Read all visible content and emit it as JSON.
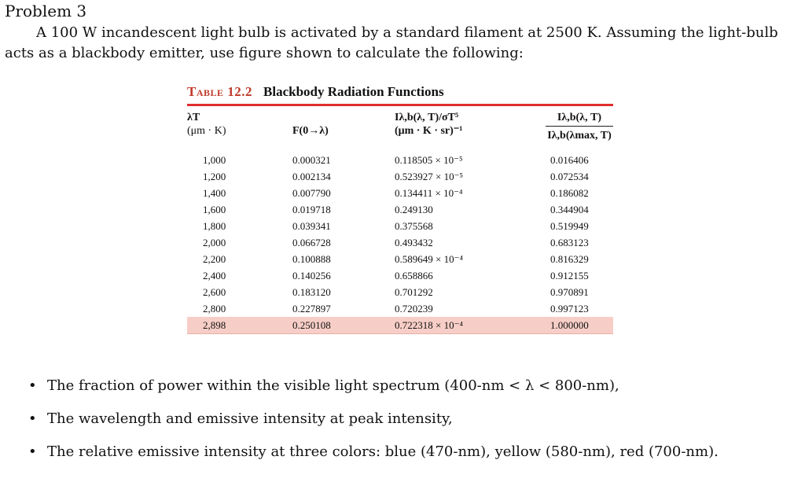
{
  "problem": {
    "heading": "Problem 3",
    "statement": "A 100 W incandescent light bulb is activated by a standard filament at 2500 K. Assuming the light-bulb acts as a blackbody emitter, use figure shown to calculate the following:"
  },
  "table": {
    "number": "Table 12.2",
    "title": "Blackbody Radiation Functions",
    "headers": {
      "col1_line1": "λT",
      "col1_line2": "(μm · K)",
      "col2": "F(0→λ)",
      "col3_line1": "Iλ,b(λ, T)/σT⁵",
      "col3_line2": "(μm · K · sr)⁻¹",
      "col4_num": "Iλ,b(λ, T)",
      "col4_den": "Iλ,b(λmax, T)"
    },
    "rows": [
      [
        "1,000",
        "0.000321",
        "0.118505 × 10⁻⁵",
        "0.016406"
      ],
      [
        "1,200",
        "0.002134",
        "0.523927 × 10⁻⁵",
        "0.072534"
      ],
      [
        "1,400",
        "0.007790",
        "0.134411 × 10⁻⁴",
        "0.186082"
      ],
      [
        "1,600",
        "0.019718",
        "0.249130",
        "0.344904"
      ],
      [
        "1,800",
        "0.039341",
        "0.375568",
        "0.519949"
      ],
      [
        "2,000",
        "0.066728",
        "0.493432",
        "0.683123"
      ],
      [
        "2,200",
        "0.100888",
        "0.589649 × 10⁻⁴",
        "0.816329"
      ],
      [
        "2,400",
        "0.140256",
        "0.658866",
        "0.912155"
      ],
      [
        "2,600",
        "0.183120",
        "0.701292",
        "0.970891"
      ],
      [
        "2,800",
        "0.227897",
        "0.720239",
        "0.997123"
      ],
      [
        "2,898",
        "0.250108",
        "0.722318 × 10⁻⁴",
        "1.000000"
      ]
    ],
    "highlight_color": "#f7cec7",
    "accent_color": "#e02f2f"
  },
  "tasks": [
    "The fraction of power within the visible light spectrum (400-nm < λ < 800-nm),",
    "The wavelength and emissive intensity at peak intensity,",
    "The relative emissive intensity at three colors: blue (470-nm), yellow (580-nm), red (700-nm)."
  ],
  "bullet_glyph": "•"
}
